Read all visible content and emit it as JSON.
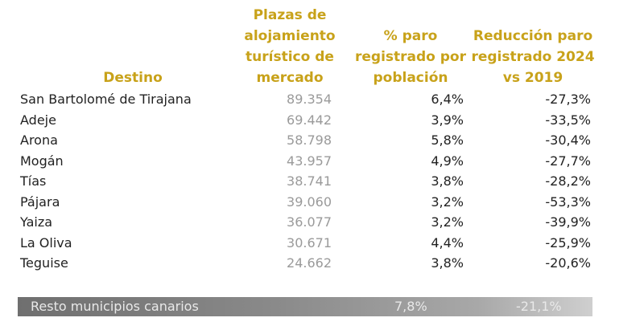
{
  "table": {
    "headers": {
      "destino": "Destino",
      "plazas": "Plazas de alojamiento turístico de mercado",
      "paro": "% paro registrado por población",
      "reduccion": "Reducción paro registrado 2024 vs 2019"
    },
    "rows": [
      {
        "destino": "San Bartolomé de Tirajana",
        "plazas": "89.354",
        "paro": "6,4%",
        "reduccion": "-27,3%"
      },
      {
        "destino": "Adeje",
        "plazas": "69.442",
        "paro": "3,9%",
        "reduccion": "-33,5%"
      },
      {
        "destino": "Arona",
        "plazas": "58.798",
        "paro": "5,8%",
        "reduccion": "-30,4%"
      },
      {
        "destino": "Mogán",
        "plazas": "43.957",
        "paro": "4,9%",
        "reduccion": "-27,7%"
      },
      {
        "destino": "Tías",
        "plazas": "38.741",
        "paro": "3,8%",
        "reduccion": "-28,2%"
      },
      {
        "destino": "Pájara",
        "plazas": "39.060",
        "paro": "3,2%",
        "reduccion": "-53,3%"
      },
      {
        "destino": "Yaiza",
        "plazas": "36.077",
        "paro": "3,2%",
        "reduccion": "-39,9%"
      },
      {
        "destino": "La Oliva",
        "plazas": "30.671",
        "paro": "4,4%",
        "reduccion": "-25,9%"
      },
      {
        "destino": "Teguise",
        "plazas": "24.662",
        "paro": "3,8%",
        "reduccion": "-20,6%"
      }
    ],
    "summary": {
      "label": "Resto municipios canarios",
      "paro": "7,8%",
      "reduccion": "-21,1%"
    }
  },
  "colors": {
    "header": "#c8a21a",
    "text": "#222222",
    "muted": "#9a9a9a"
  }
}
